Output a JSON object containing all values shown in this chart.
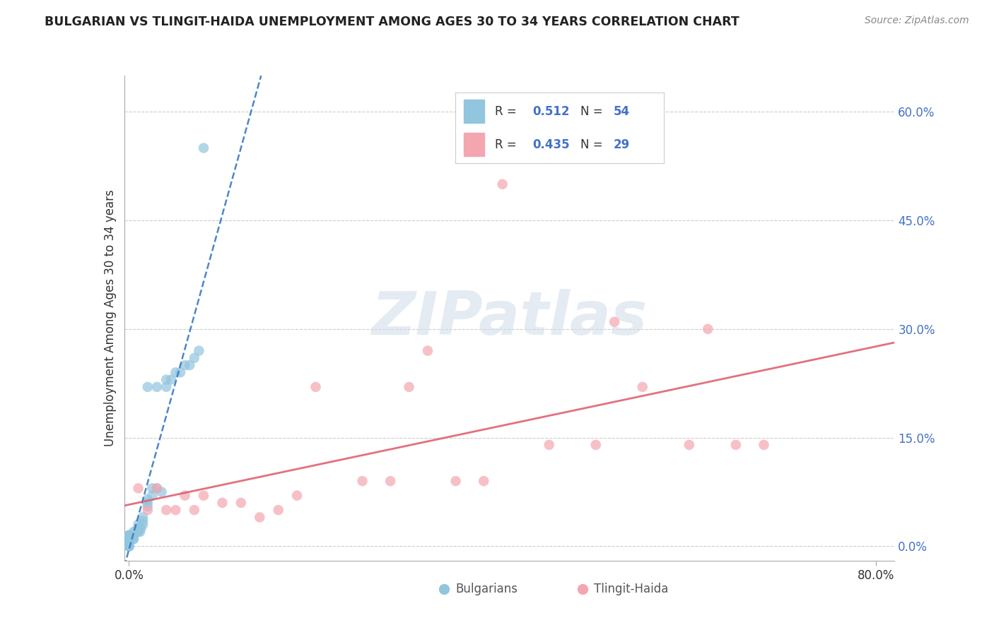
{
  "title": "BULGARIAN VS TLINGIT-HAIDA UNEMPLOYMENT AMONG AGES 30 TO 34 YEARS CORRELATION CHART",
  "source": "Source: ZipAtlas.com",
  "ylabel": "Unemployment Among Ages 30 to 34 years",
  "xlim": [
    -0.005,
    0.82
  ],
  "ylim": [
    -0.02,
    0.65
  ],
  "x_ticks": [
    0.0,
    0.8
  ],
  "x_tick_labels": [
    "0.0%",
    "80.0%"
  ],
  "y_ticks_right": [
    0.0,
    0.15,
    0.3,
    0.45,
    0.6
  ],
  "y_tick_labels_right": [
    "0.0%",
    "15.0%",
    "30.0%",
    "45.0%",
    "60.0%"
  ],
  "legend_r_bulgarian": "0.512",
  "legend_n_bulgarian": "54",
  "legend_r_tlingit": "0.435",
  "legend_n_tlingit": "29",
  "bulgarian_color": "#92c5de",
  "tlingit_color": "#f4a6b0",
  "bulgarian_line_color": "#3a7abf",
  "tlingit_line_color": "#e06070",
  "watermark": "ZIPatlas",
  "bulgarian_x": [
    0.0,
    0.0,
    0.0,
    0.0,
    0.0,
    0.0,
    0.0,
    0.0,
    0.0,
    0.0,
    0.0,
    0.0,
    0.0,
    0.0,
    0.0,
    0.0,
    0.0,
    0.0,
    0.0,
    0.0,
    0.005,
    0.005,
    0.005,
    0.005,
    0.007,
    0.01,
    0.01,
    0.01,
    0.01,
    0.01,
    0.012,
    0.013,
    0.015,
    0.015,
    0.015,
    0.02,
    0.02,
    0.02,
    0.02,
    0.025,
    0.025,
    0.03,
    0.03,
    0.035,
    0.04,
    0.04,
    0.045,
    0.05,
    0.055,
    0.06,
    0.065,
    0.07,
    0.075,
    0.08
  ],
  "bulgarian_y": [
    0.0,
    0.0,
    0.0,
    0.0,
    0.0,
    0.0,
    0.005,
    0.005,
    0.005,
    0.005,
    0.007,
    0.007,
    0.01,
    0.01,
    0.01,
    0.012,
    0.012,
    0.015,
    0.015,
    0.015,
    0.01,
    0.01,
    0.015,
    0.02,
    0.02,
    0.02,
    0.02,
    0.025,
    0.025,
    0.03,
    0.02,
    0.025,
    0.03,
    0.035,
    0.04,
    0.055,
    0.06,
    0.065,
    0.22,
    0.07,
    0.08,
    0.08,
    0.22,
    0.075,
    0.22,
    0.23,
    0.23,
    0.24,
    0.24,
    0.25,
    0.25,
    0.26,
    0.27,
    0.55
  ],
  "tlingit_x": [
    0.01,
    0.02,
    0.03,
    0.04,
    0.05,
    0.06,
    0.07,
    0.08,
    0.1,
    0.12,
    0.14,
    0.16,
    0.18,
    0.2,
    0.25,
    0.28,
    0.3,
    0.32,
    0.35,
    0.38,
    0.4,
    0.45,
    0.5,
    0.52,
    0.55,
    0.6,
    0.62,
    0.65,
    0.68
  ],
  "tlingit_y": [
    0.08,
    0.05,
    0.08,
    0.05,
    0.05,
    0.07,
    0.05,
    0.07,
    0.06,
    0.06,
    0.04,
    0.05,
    0.07,
    0.22,
    0.09,
    0.09,
    0.22,
    0.27,
    0.09,
    0.09,
    0.5,
    0.14,
    0.14,
    0.31,
    0.22,
    0.14,
    0.3,
    0.14,
    0.14
  ]
}
